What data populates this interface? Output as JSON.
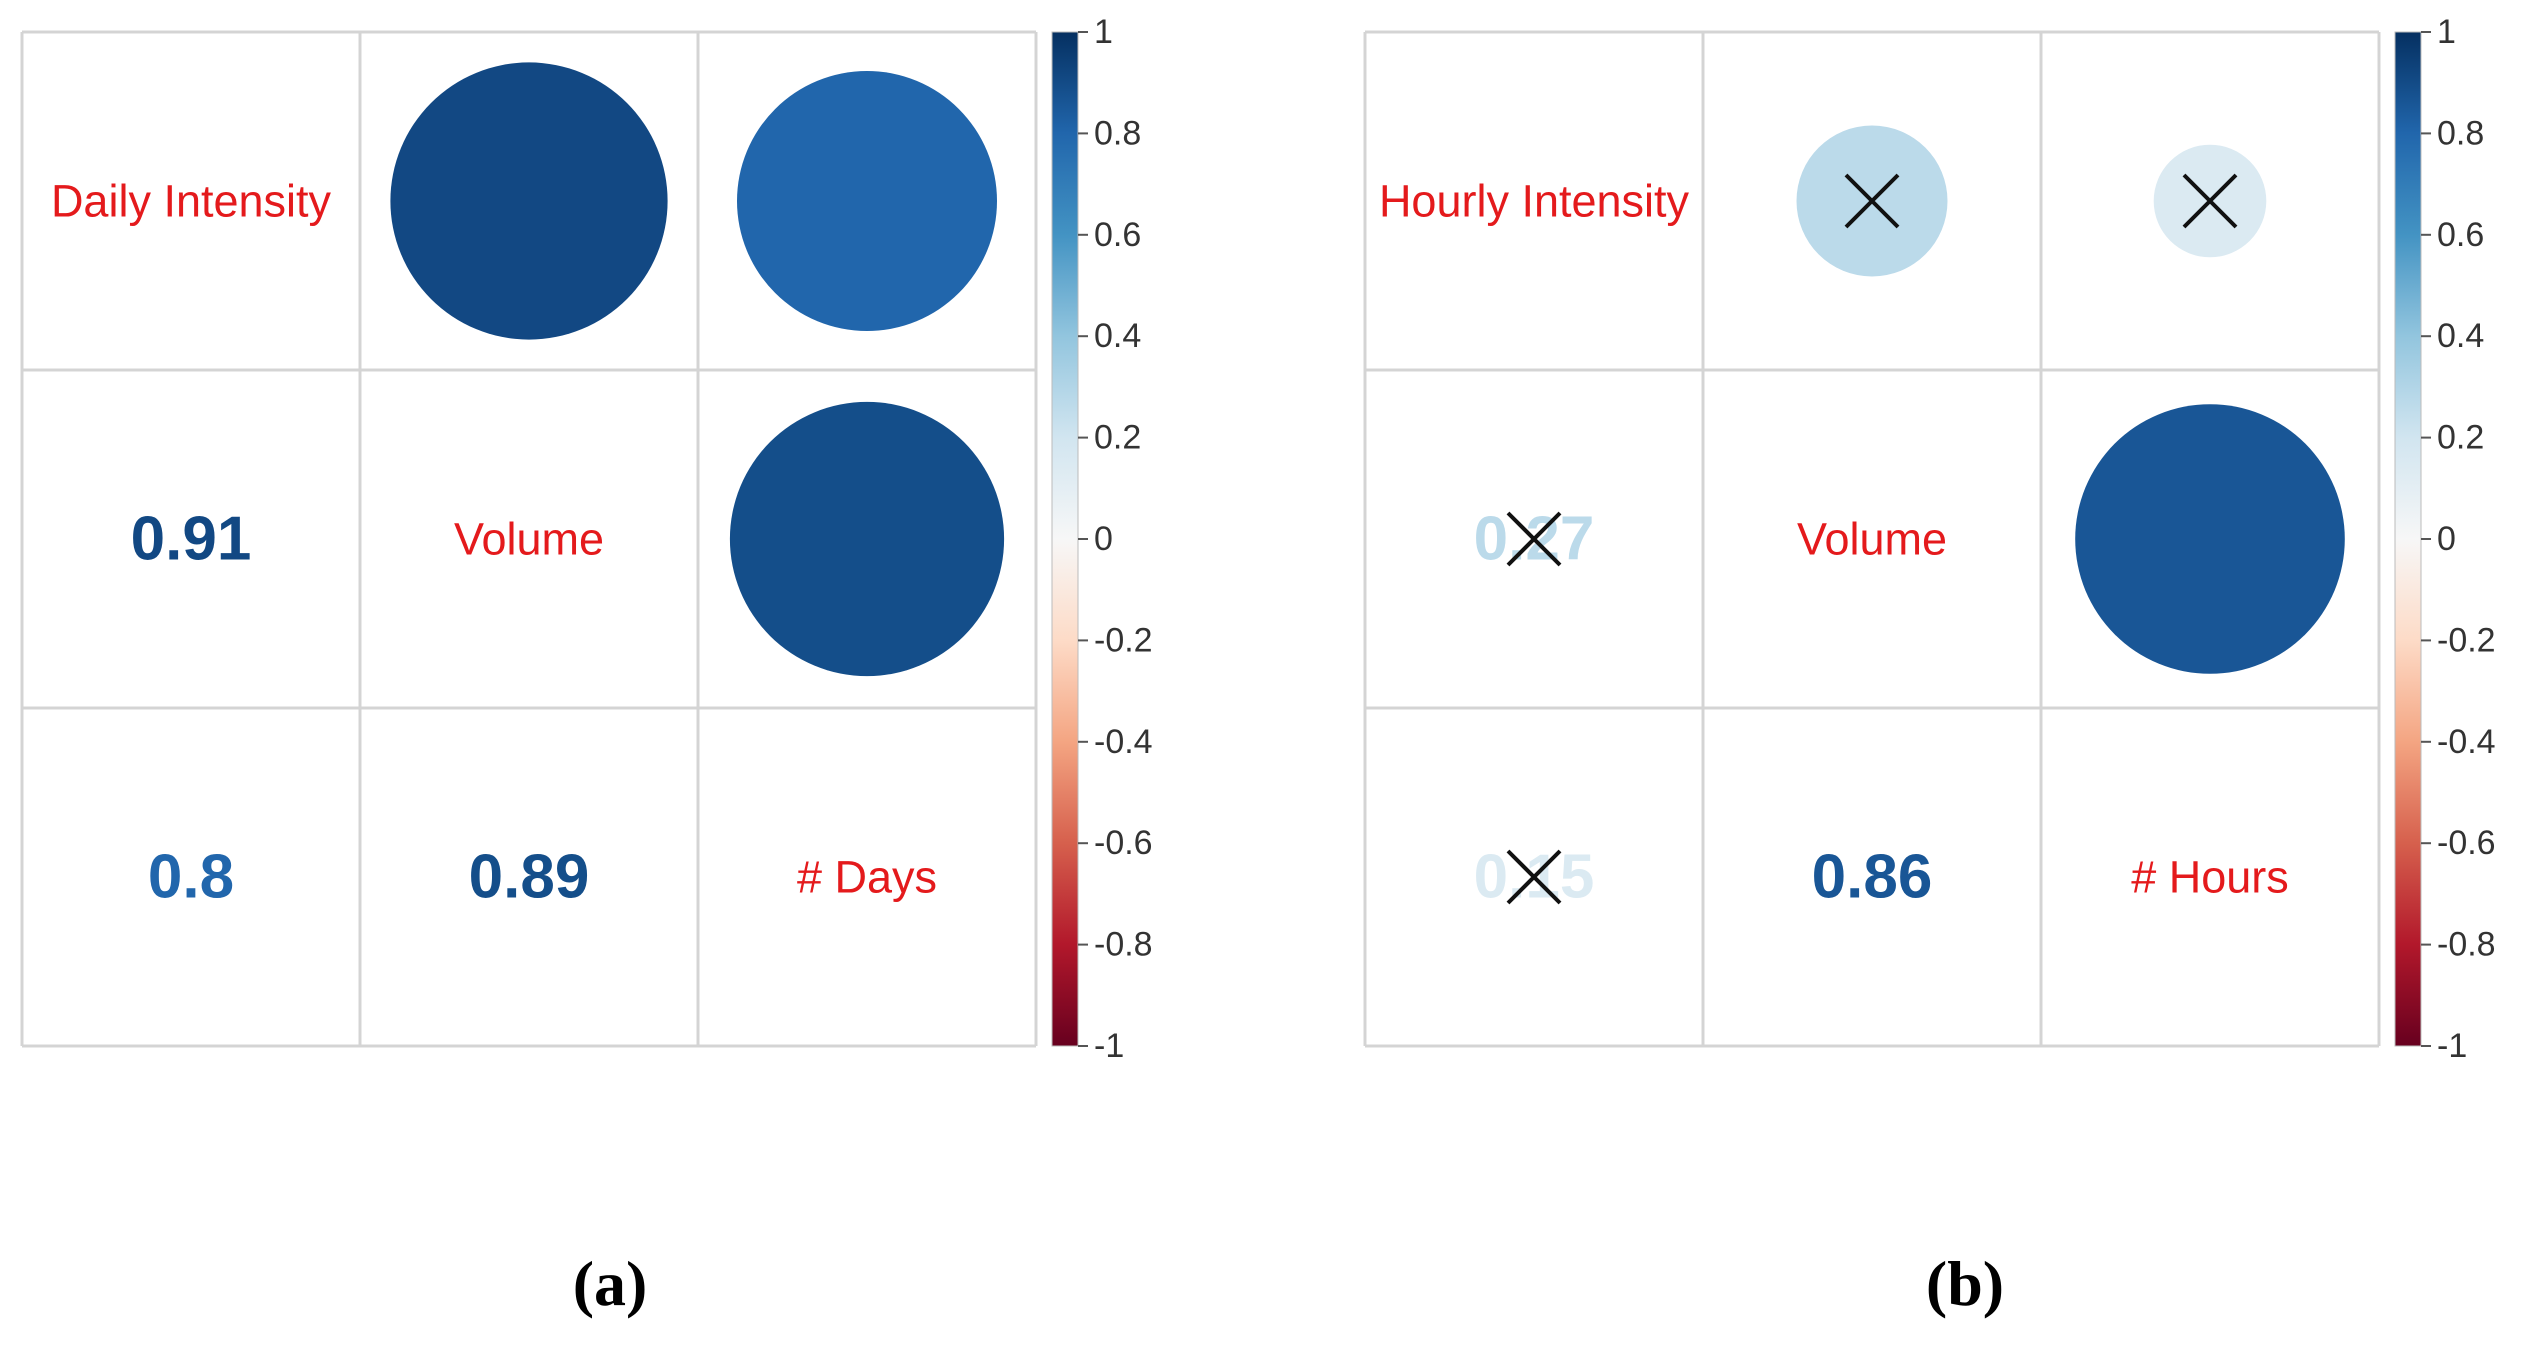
{
  "chart_data": [
    {
      "type": "heatmap",
      "panel_label": "(a)",
      "variables": [
        "Daily Intensity",
        "Volume",
        "# Days"
      ],
      "correlations": [
        {
          "row": 0,
          "col": 1,
          "value": 0.91,
          "significant": true
        },
        {
          "row": 0,
          "col": 2,
          "value": 0.8,
          "significant": true
        },
        {
          "row": 1,
          "col": 2,
          "value": 0.89,
          "significant": true
        }
      ],
      "lower_labels": [
        {
          "row": 1,
          "col": 0,
          "text": "0.91"
        },
        {
          "row": 2,
          "col": 0,
          "text": "0.8"
        },
        {
          "row": 2,
          "col": 1,
          "text": "0.89"
        }
      ],
      "upper_style": "circle",
      "lower_style": "number",
      "colorbar": {
        "range": [
          -1,
          1
        ],
        "ticks": [
          "1",
          "0.8",
          "0.6",
          "0.4",
          "0.2",
          "0",
          "-0.2",
          "-0.4",
          "-0.6",
          "-0.8",
          "-1"
        ]
      }
    },
    {
      "type": "heatmap",
      "panel_label": "(b)",
      "variables": [
        "Hourly Intensity",
        "Volume",
        "# Hours"
      ],
      "correlations": [
        {
          "row": 0,
          "col": 1,
          "value": 0.27,
          "significant": false
        },
        {
          "row": 0,
          "col": 2,
          "value": 0.15,
          "significant": false
        },
        {
          "row": 1,
          "col": 2,
          "value": 0.86,
          "significant": true
        }
      ],
      "lower_labels": [
        {
          "row": 1,
          "col": 0,
          "text": "0.27"
        },
        {
          "row": 2,
          "col": 0,
          "text": "0.15"
        },
        {
          "row": 2,
          "col": 1,
          "text": "0.86"
        }
      ],
      "upper_style": "circle",
      "lower_style": "number",
      "colorbar": {
        "range": [
          -1,
          1
        ],
        "ticks": [
          "1",
          "0.8",
          "0.6",
          "0.4",
          "0.2",
          "0",
          "-0.2",
          "-0.4",
          "-0.6",
          "-0.8",
          "-1"
        ]
      }
    }
  ],
  "colors": {
    "label_red": "#e41a1c",
    "grid_line": "#d4d4d4",
    "cross": "#111111",
    "scale": [
      "#67001f",
      "#b2182b",
      "#d6604d",
      "#f4a582",
      "#fddbc7",
      "#f7f7f7",
      "#d1e5f0",
      "#92c5de",
      "#4393c3",
      "#2166ac",
      "#053061"
    ]
  }
}
